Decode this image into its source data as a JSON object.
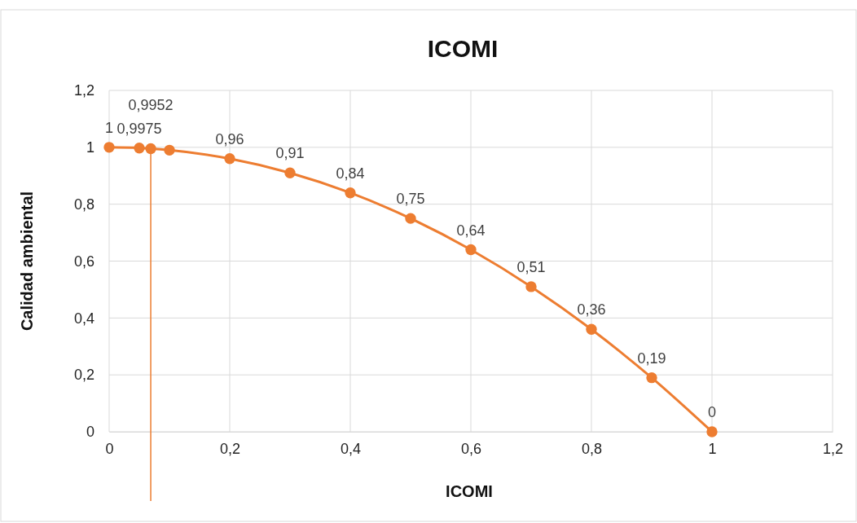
{
  "chart_data": {
    "type": "line",
    "title": "ICOMI",
    "xlabel": "ICOMI",
    "ylabel": "Calidad ambiental",
    "x": [
      0,
      0.05,
      0.069,
      0.1,
      0.2,
      0.3,
      0.4,
      0.5,
      0.6,
      0.7,
      0.8,
      0.9,
      1
    ],
    "series": [
      {
        "color": "#ed7d31",
        "values": [
          1,
          0.9975,
          0.9952,
          0.99,
          0.96,
          0.91,
          0.84,
          0.75,
          0.64,
          0.51,
          0.36,
          0.19,
          0
        ],
        "value_labels": [
          "1",
          "0,9975",
          "0,9952",
          null,
          "0,96",
          "0,91",
          "0,84",
          "0,75",
          "0,64",
          "0,51",
          "0,36",
          "0,19",
          "0"
        ]
      }
    ],
    "xlim": [
      0,
      1.2
    ],
    "ylim": [
      0,
      1.2
    ],
    "xticks": [
      0,
      {
        "value": 0.2,
        "label": "0,2"
      },
      {
        "value": 0.4,
        "label": "0,4"
      },
      {
        "value": 0.6,
        "label": "0,6"
      },
      {
        "value": 0.8,
        "label": "0,8"
      },
      1,
      {
        "value": 1.2,
        "label": "1,2"
      }
    ],
    "yticks": [
      0,
      {
        "value": 0.2,
        "label": "0,2"
      },
      {
        "value": 0.4,
        "label": "0,4"
      },
      {
        "value": 0.6,
        "label": "0,6"
      },
      {
        "value": 0.8,
        "label": "0,8"
      },
      1,
      {
        "value": 1.2,
        "label": "1,2"
      }
    ],
    "ref_lines": [
      {
        "axis": "x",
        "value": 0.069,
        "color": "#ed7d31"
      }
    ],
    "grid": true,
    "marker": "circle",
    "line_style": "solid"
  }
}
